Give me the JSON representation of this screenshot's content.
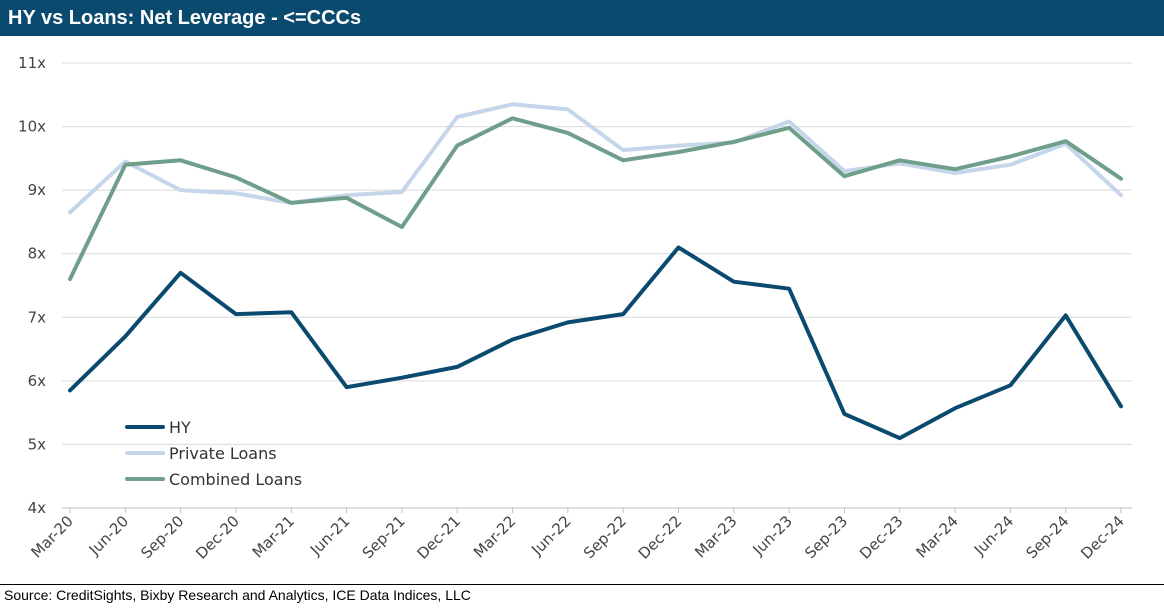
{
  "header": {
    "title": "HY vs Loans: Net Leverage - <=CCCs"
  },
  "footer": {
    "source": "Source: CreditSights, Bixby Research and Analytics, ICE Data Indices, LLC"
  },
  "chart_data": {
    "type": "line",
    "title": "HY vs Loans: Net Leverage - <=CCCs",
    "xlabel": "",
    "ylabel": "",
    "categories": [
      "Mar-20",
      "Jun-20",
      "Sep-20",
      "Dec-20",
      "Mar-21",
      "Jun-21",
      "Sep-21",
      "Dec-21",
      "Mar-22",
      "Jun-22",
      "Sep-22",
      "Dec-22",
      "Mar-23",
      "Jun-23",
      "Sep-23",
      "Dec-23",
      "Mar-24",
      "Jun-24",
      "Sep-24",
      "Dec-24"
    ],
    "y_ticks": [
      4,
      5,
      6,
      7,
      8,
      9,
      10,
      11
    ],
    "y_tick_labels": [
      "4x",
      "5x",
      "6x",
      "7x",
      "8x",
      "9x",
      "10x",
      "11x"
    ],
    "ylim": [
      4,
      11
    ],
    "grid": "horizontal",
    "legend_position": "lower-left",
    "series": [
      {
        "name": "Private Loans",
        "color": "#c5d5ea",
        "values": [
          8.65,
          9.45,
          9.0,
          8.95,
          8.8,
          8.92,
          8.97,
          10.15,
          10.35,
          10.27,
          9.63,
          9.7,
          9.75,
          10.08,
          9.3,
          9.42,
          9.27,
          9.4,
          9.73,
          8.92
        ]
      },
      {
        "name": "Combined Loans",
        "color": "#6f9e8b",
        "values": [
          7.6,
          9.4,
          9.47,
          9.2,
          8.8,
          8.88,
          8.42,
          9.7,
          10.13,
          9.9,
          9.47,
          9.6,
          9.76,
          9.98,
          9.22,
          9.47,
          9.33,
          9.53,
          9.77,
          9.18
        ]
      },
      {
        "name": "HY",
        "color": "#0b4a6f",
        "values": [
          5.85,
          6.7,
          7.7,
          7.05,
          7.08,
          5.9,
          6.05,
          6.22,
          6.65,
          6.92,
          7.05,
          8.1,
          7.56,
          7.45,
          5.48,
          5.1,
          5.57,
          5.93,
          7.03,
          5.6
        ]
      }
    ],
    "legend_order": [
      "HY",
      "Private Loans",
      "Combined Loans"
    ]
  }
}
